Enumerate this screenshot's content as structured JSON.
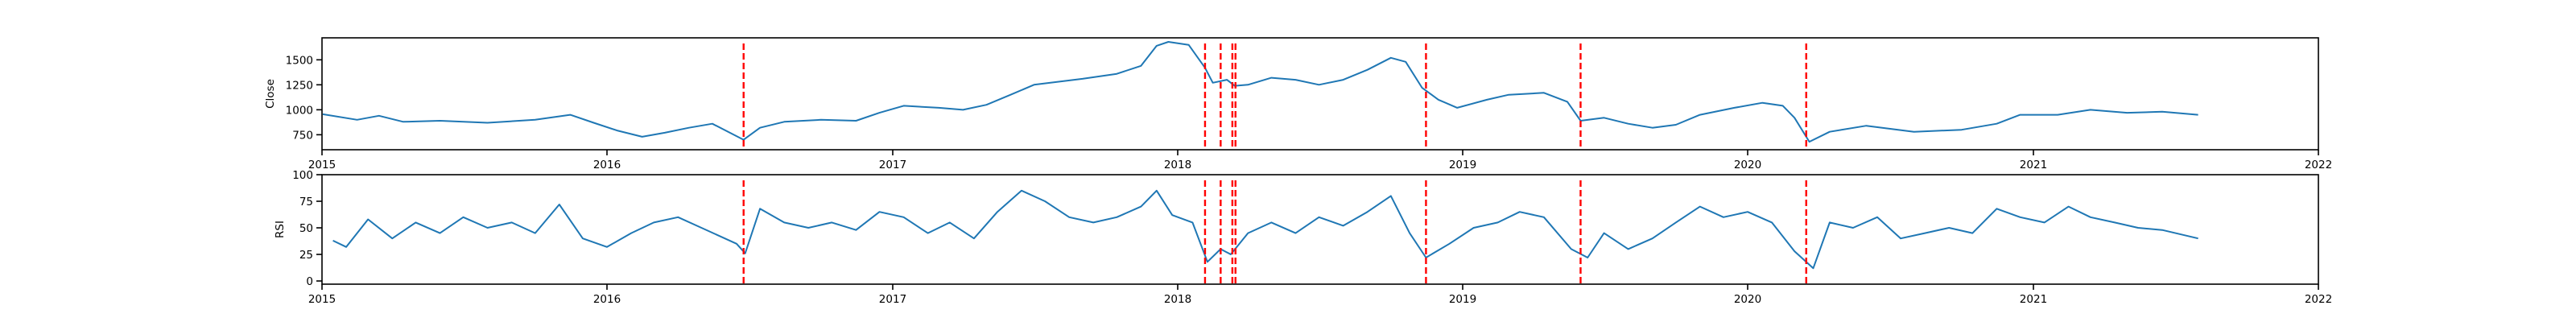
{
  "chart_data": [
    {
      "type": "line",
      "name": "price-panel",
      "ylabel": "Close",
      "xlim": [
        "2015-01-01",
        "2022-01-01"
      ],
      "ylim": [
        600,
        1720
      ],
      "yticks": [
        750,
        1000,
        1250,
        1500
      ],
      "xticks": [
        "2015",
        "2016",
        "2017",
        "2018",
        "2019",
        "2020",
        "2021",
        "2022"
      ],
      "grid": false,
      "series": [
        {
          "color": "#1f77b4",
          "points": [
            [
              "2015-01-02",
              955
            ],
            [
              "2015-02-15",
              900
            ],
            [
              "2015-03-15",
              940
            ],
            [
              "2015-04-15",
              880
            ],
            [
              "2015-06-01",
              890
            ],
            [
              "2015-08-01",
              870
            ],
            [
              "2015-10-01",
              900
            ],
            [
              "2015-11-15",
              950
            ],
            [
              "2015-12-15",
              870
            ],
            [
              "2016-01-15",
              790
            ],
            [
              "2016-02-15",
              730
            ],
            [
              "2016-03-15",
              770
            ],
            [
              "2016-04-15",
              820
            ],
            [
              "2016-05-15",
              860
            ],
            [
              "2016-06-24",
              700
            ],
            [
              "2016-07-15",
              820
            ],
            [
              "2016-08-15",
              880
            ],
            [
              "2016-10-01",
              900
            ],
            [
              "2016-11-15",
              890
            ],
            [
              "2016-12-15",
              970
            ],
            [
              "2017-01-15",
              1040
            ],
            [
              "2017-03-01",
              1020
            ],
            [
              "2017-04-01",
              1000
            ],
            [
              "2017-05-01",
              1050
            ],
            [
              "2017-06-01",
              1150
            ],
            [
              "2017-07-01",
              1250
            ],
            [
              "2017-09-01",
              1310
            ],
            [
              "2017-10-15",
              1360
            ],
            [
              "2017-11-15",
              1440
            ],
            [
              "2017-12-05",
              1640
            ],
            [
              "2017-12-20",
              1680
            ],
            [
              "2018-01-15",
              1650
            ],
            [
              "2018-02-05",
              1420
            ],
            [
              "2018-02-15",
              1270
            ],
            [
              "2018-03-05",
              1300
            ],
            [
              "2018-03-15",
              1240
            ],
            [
              "2018-04-01",
              1250
            ],
            [
              "2018-05-01",
              1320
            ],
            [
              "2018-06-01",
              1300
            ],
            [
              "2018-07-01",
              1250
            ],
            [
              "2018-08-01",
              1300
            ],
            [
              "2018-09-01",
              1400
            ],
            [
              "2018-10-01",
              1520
            ],
            [
              "2018-10-20",
              1480
            ],
            [
              "2018-11-10",
              1220
            ],
            [
              "2018-12-01",
              1100
            ],
            [
              "2018-12-25",
              1020
            ],
            [
              "2019-02-01",
              1100
            ],
            [
              "2019-03-01",
              1150
            ],
            [
              "2019-04-15",
              1170
            ],
            [
              "2019-05-15",
              1080
            ],
            [
              "2019-06-01",
              890
            ],
            [
              "2019-07-01",
              920
            ],
            [
              "2019-08-01",
              860
            ],
            [
              "2019-09-01",
              820
            ],
            [
              "2019-10-01",
              850
            ],
            [
              "2019-11-01",
              950
            ],
            [
              "2019-12-15",
              1020
            ],
            [
              "2020-01-20",
              1070
            ],
            [
              "2020-02-15",
              1040
            ],
            [
              "2020-03-01",
              920
            ],
            [
              "2020-03-20",
              680
            ],
            [
              "2020-04-15",
              780
            ],
            [
              "2020-06-01",
              840
            ],
            [
              "2020-08-01",
              780
            ],
            [
              "2020-10-01",
              800
            ],
            [
              "2020-11-15",
              860
            ],
            [
              "2020-12-15",
              950
            ],
            [
              "2021-02-01",
              950
            ],
            [
              "2021-03-15",
              1000
            ],
            [
              "2021-05-01",
              970
            ],
            [
              "2021-06-15",
              980
            ],
            [
              "2021-07-31",
              950
            ]
          ]
        }
      ]
    },
    {
      "type": "line",
      "name": "rsi-panel",
      "ylabel": "RSI",
      "xlim": [
        "2015-01-01",
        "2022-01-01"
      ],
      "ylim": [
        -3,
        100
      ],
      "yticks": [
        0,
        25,
        50,
        75,
        100
      ],
      "xticks": [
        "2015",
        "2016",
        "2017",
        "2018",
        "2019",
        "2020",
        "2021",
        "2022"
      ],
      "grid": false,
      "series": [
        {
          "color": "#1f77b4",
          "points": [
            [
              "2015-01-15",
              38
            ],
            [
              "2015-02-01",
              32
            ],
            [
              "2015-03-01",
              58
            ],
            [
              "2015-04-01",
              40
            ],
            [
              "2015-05-01",
              55
            ],
            [
              "2015-06-01",
              45
            ],
            [
              "2015-07-01",
              60
            ],
            [
              "2015-08-01",
              50
            ],
            [
              "2015-09-01",
              55
            ],
            [
              "2015-10-01",
              45
            ],
            [
              "2015-11-01",
              72
            ],
            [
              "2015-12-01",
              40
            ],
            [
              "2016-01-01",
              32
            ],
            [
              "2016-02-01",
              45
            ],
            [
              "2016-03-01",
              55
            ],
            [
              "2016-04-01",
              60
            ],
            [
              "2016-05-01",
              50
            ],
            [
              "2016-06-15",
              35
            ],
            [
              "2016-06-26",
              26
            ],
            [
              "2016-07-15",
              68
            ],
            [
              "2016-08-15",
              55
            ],
            [
              "2016-09-15",
              50
            ],
            [
              "2016-10-15",
              55
            ],
            [
              "2016-11-15",
              48
            ],
            [
              "2016-12-15",
              65
            ],
            [
              "2017-01-15",
              60
            ],
            [
              "2017-02-15",
              45
            ],
            [
              "2017-03-15",
              55
            ],
            [
              "2017-04-15",
              40
            ],
            [
              "2017-05-15",
              65
            ],
            [
              "2017-06-15",
              85
            ],
            [
              "2017-07-15",
              75
            ],
            [
              "2017-08-15",
              60
            ],
            [
              "2017-09-15",
              55
            ],
            [
              "2017-10-15",
              60
            ],
            [
              "2017-11-15",
              70
            ],
            [
              "2017-12-05",
              85
            ],
            [
              "2017-12-25",
              62
            ],
            [
              "2018-01-20",
              55
            ],
            [
              "2018-02-08",
              18
            ],
            [
              "2018-02-25",
              30
            ],
            [
              "2018-03-10",
              25
            ],
            [
              "2018-04-01",
              45
            ],
            [
              "2018-05-01",
              55
            ],
            [
              "2018-06-01",
              45
            ],
            [
              "2018-07-01",
              60
            ],
            [
              "2018-08-01",
              52
            ],
            [
              "2018-09-01",
              65
            ],
            [
              "2018-10-01",
              80
            ],
            [
              "2018-10-25",
              45
            ],
            [
              "2018-11-15",
              22
            ],
            [
              "2018-12-15",
              35
            ],
            [
              "2019-01-15",
              50
            ],
            [
              "2019-02-15",
              55
            ],
            [
              "2019-03-15",
              65
            ],
            [
              "2019-04-15",
              60
            ],
            [
              "2019-05-20",
              30
            ],
            [
              "2019-06-10",
              22
            ],
            [
              "2019-07-01",
              45
            ],
            [
              "2019-08-01",
              30
            ],
            [
              "2019-09-01",
              40
            ],
            [
              "2019-10-01",
              55
            ],
            [
              "2019-11-01",
              70
            ],
            [
              "2019-12-01",
              60
            ],
            [
              "2020-01-01",
              65
            ],
            [
              "2020-02-01",
              55
            ],
            [
              "2020-03-01",
              28
            ],
            [
              "2020-03-25",
              12
            ],
            [
              "2020-04-15",
              55
            ],
            [
              "2020-05-15",
              50
            ],
            [
              "2020-06-15",
              60
            ],
            [
              "2020-07-15",
              40
            ],
            [
              "2020-08-15",
              45
            ],
            [
              "2020-09-15",
              50
            ],
            [
              "2020-10-15",
              45
            ],
            [
              "2020-11-15",
              68
            ],
            [
              "2020-12-15",
              60
            ],
            [
              "2021-01-15",
              55
            ],
            [
              "2021-02-15",
              70
            ],
            [
              "2021-03-15",
              60
            ],
            [
              "2021-04-15",
              55
            ],
            [
              "2021-05-15",
              50
            ],
            [
              "2021-06-15",
              48
            ],
            [
              "2021-07-31",
              40
            ]
          ]
        }
      ]
    }
  ],
  "events": {
    "color": "#ff0000",
    "dates": [
      "2016-06-24",
      "2018-02-05",
      "2018-02-25",
      "2018-03-12",
      "2018-03-16",
      "2018-11-15",
      "2019-06-01",
      "2020-03-16"
    ]
  }
}
